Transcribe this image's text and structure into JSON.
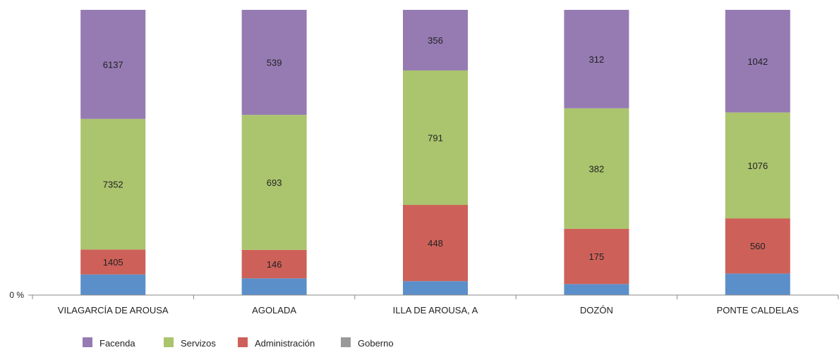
{
  "chart_data": {
    "type": "bar",
    "stacked": "percent",
    "categories": [
      "VILAGARCÍA DE AROUSA",
      "AGOLADA",
      "ILLA DE AROUSA, A",
      "DOZÓN",
      "PONTE CALDELAS"
    ],
    "series": [
      {
        "name": "Gobierno",
        "color": "#5b8fc9",
        "values": [
          1160,
          86,
          82,
          35,
          219
        ],
        "labeled": false
      },
      {
        "name": "Administración",
        "color": "#cd6159",
        "values": [
          1405,
          146,
          448,
          175,
          560
        ],
        "labeled": true
      },
      {
        "name": "Servizos",
        "color": "#abc46e",
        "values": [
          7352,
          693,
          791,
          382,
          1076
        ],
        "labeled": true
      },
      {
        "name": "Facenda",
        "color": "#967bb3",
        "values": [
          6137,
          539,
          356,
          312,
          1042
        ],
        "labeled": true
      }
    ],
    "legend_order": [
      "Facenda",
      "Servizos",
      "Administración",
      "Goberno"
    ],
    "y_tick_label": "0 %",
    "legend_position": "bottom-left",
    "grid": false
  }
}
